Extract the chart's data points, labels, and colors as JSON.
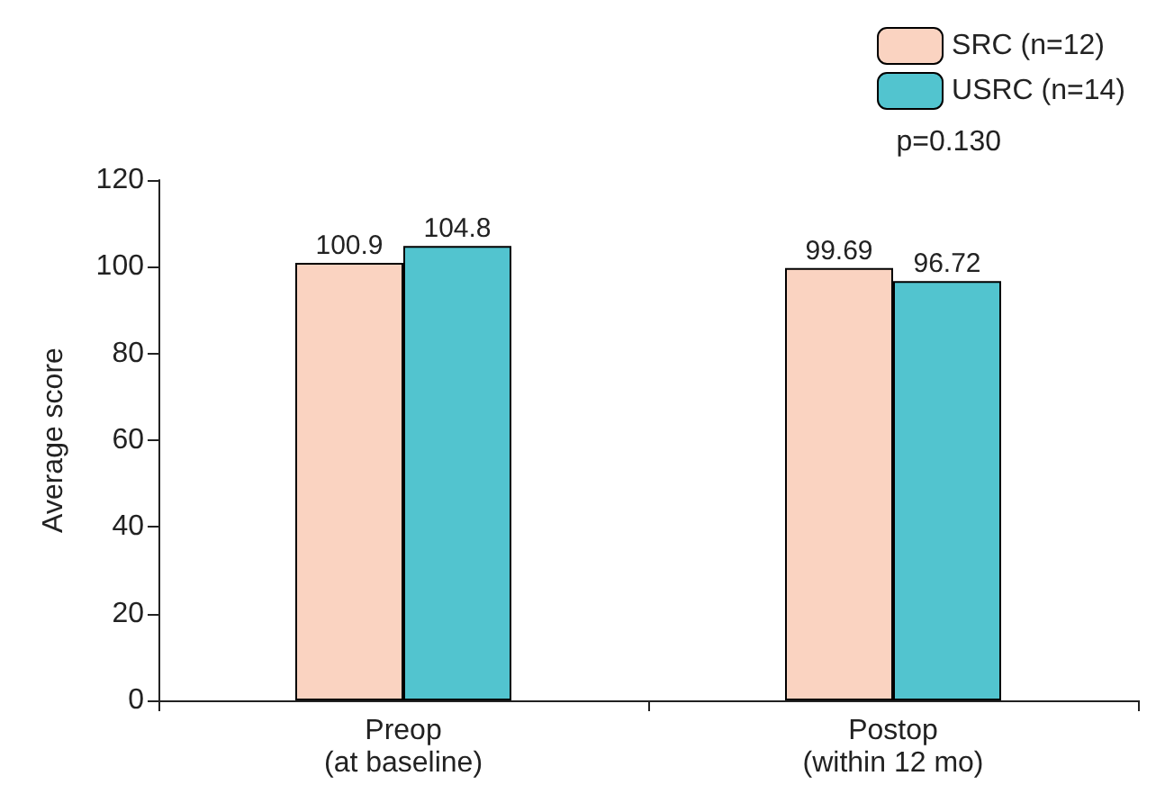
{
  "chart_data": {
    "type": "bar",
    "ylabel": "Average score",
    "categories": [
      "Preop\n(at baseline)",
      "Postop\n(within 12 mo)"
    ],
    "series": [
      {
        "name": "SRC (n=12)",
        "color": "#fad3c1",
        "values": [
          100.9,
          99.69
        ]
      },
      {
        "name": "USRC (n=14)",
        "color": "#52c4cf",
        "values": [
          104.8,
          96.72
        ]
      }
    ],
    "ylim": [
      0,
      120
    ],
    "yticks": [
      0,
      20,
      40,
      60,
      80,
      100,
      120
    ],
    "grid": false,
    "legend": "top right",
    "data_labels": true,
    "annotations": [
      "p=0.130"
    ]
  }
}
